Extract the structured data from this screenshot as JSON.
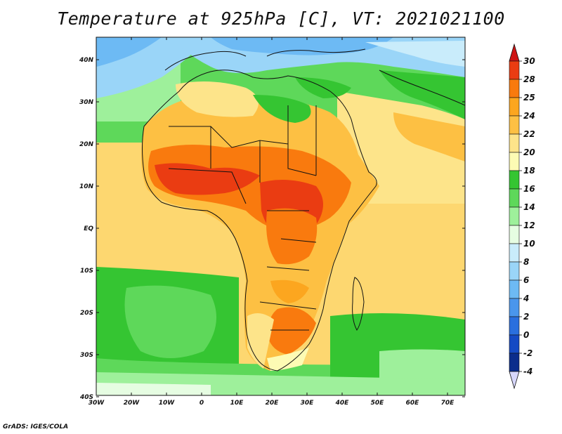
{
  "title": "Temperature at 925hPa [C], VT: 2021021100",
  "footer": "GrADS: IGES/COLA",
  "map": {
    "lon_range": [
      -30,
      75
    ],
    "lat_range": [
      -40,
      45
    ],
    "lon_ticks": [
      "30W",
      "20W",
      "10W",
      "0",
      "10E",
      "20E",
      "30E",
      "40E",
      "50E",
      "60E",
      "70E"
    ],
    "lat_ticks": [
      "40N",
      "30N",
      "20N",
      "10N",
      "EQ",
      "10S",
      "20S",
      "30S",
      "40S"
    ]
  },
  "colorbar": {
    "labels": [
      "30",
      "28",
      "25",
      "24",
      "22",
      "20",
      "18",
      "16",
      "14",
      "12",
      "10",
      "8",
      "6",
      "4",
      "2",
      "0",
      "-2",
      "-4"
    ],
    "colors": [
      "#ce1414",
      "#ea3c12",
      "#f97a0e",
      "#fca61f",
      "#fdc043",
      "#fde48a",
      "#fdfbb4",
      "#35c532",
      "#5ed85a",
      "#9ef09b",
      "#e6fde2",
      "#c9ecfb",
      "#9ad5f8",
      "#6dbaf4",
      "#4a96ec",
      "#2a6fde",
      "#154ac4",
      "#0b2d8c",
      "#071664"
    ]
  }
}
